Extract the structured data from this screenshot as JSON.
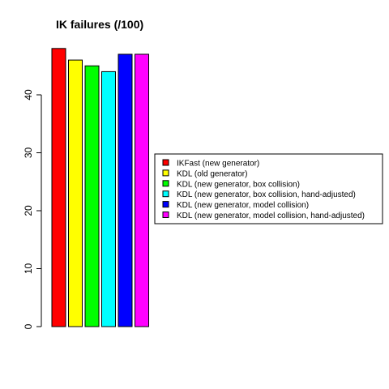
{
  "chart_data": {
    "type": "bar",
    "title": "IK failures (/100)",
    "xlabel": "",
    "ylabel": "",
    "ylim": [
      0,
      50
    ],
    "yticks": [
      0,
      10,
      20,
      30,
      40
    ],
    "categories": [
      "IKFast (new generator)",
      "KDL (old generator)",
      "KDL (new generator, box collision)",
      "KDL (new generator, box collision, hand-adjusted)",
      "KDL (new generator, model collision)",
      "KDL (new generator, model collision, hand-adjusted)"
    ],
    "values": [
      48,
      46,
      45,
      44,
      47,
      47
    ],
    "colors": [
      "#ff0000",
      "#ffff00",
      "#00ff00",
      "#00ffff",
      "#0000ff",
      "#ff00ff"
    ],
    "legend_position": "right",
    "grid": false
  }
}
